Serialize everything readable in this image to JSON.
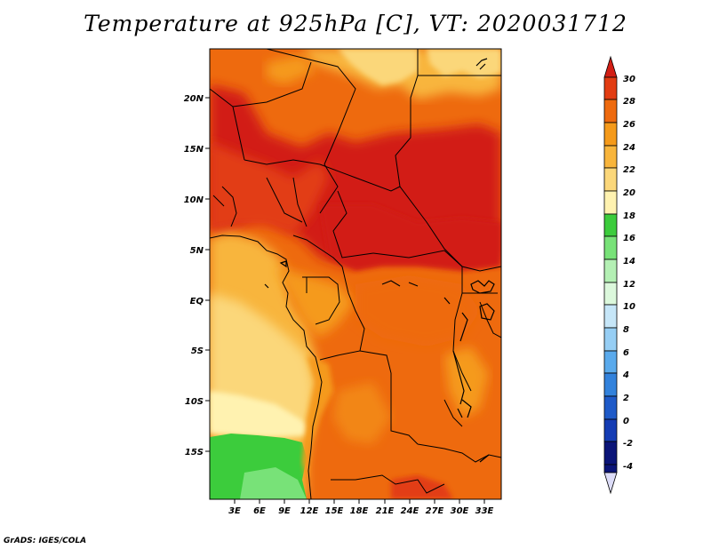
{
  "title": "Temperature at 925hPa [C], VT: 2020031712",
  "footer": "GrADS: IGES/COLA",
  "map": {
    "lat_labels": [
      "20N",
      "15N",
      "10N",
      "5N",
      "EQ",
      "5S",
      "10S",
      "15S"
    ],
    "lon_labels": [
      "3E",
      "6E",
      "9E",
      "12E",
      "15E",
      "18E",
      "21E",
      "24E",
      "27E",
      "30E",
      "33E"
    ]
  },
  "colorbar": {
    "labels": [
      "30",
      "28",
      "26",
      "24",
      "22",
      "20",
      "18",
      "16",
      "14",
      "12",
      "10",
      "8",
      "6",
      "4",
      "2",
      "0",
      "-2",
      "-4"
    ],
    "colors": {
      "above_30": "#d21e14",
      "28_30": "#e23c12",
      "26_28": "#ee6a0e",
      "24_26": "#f59a1a",
      "22_24": "#f8b53c",
      "20_22": "#fbd77a",
      "18_20": "#fff2b0",
      "16_18": "#3ccc3c",
      "14_16": "#78e278",
      "12_14": "#b4f0b4",
      "10_12": "#dcf8dc",
      "8_10": "#c6e6f8",
      "6_8": "#96cef4",
      "4_6": "#5aaaec",
      "2_4": "#3282dc",
      "0_2": "#1e5ac8",
      "-2_0": "#143cb4",
      "below_-4": "#0a1478",
      "end_bottom": "#dcdcf8"
    }
  }
}
